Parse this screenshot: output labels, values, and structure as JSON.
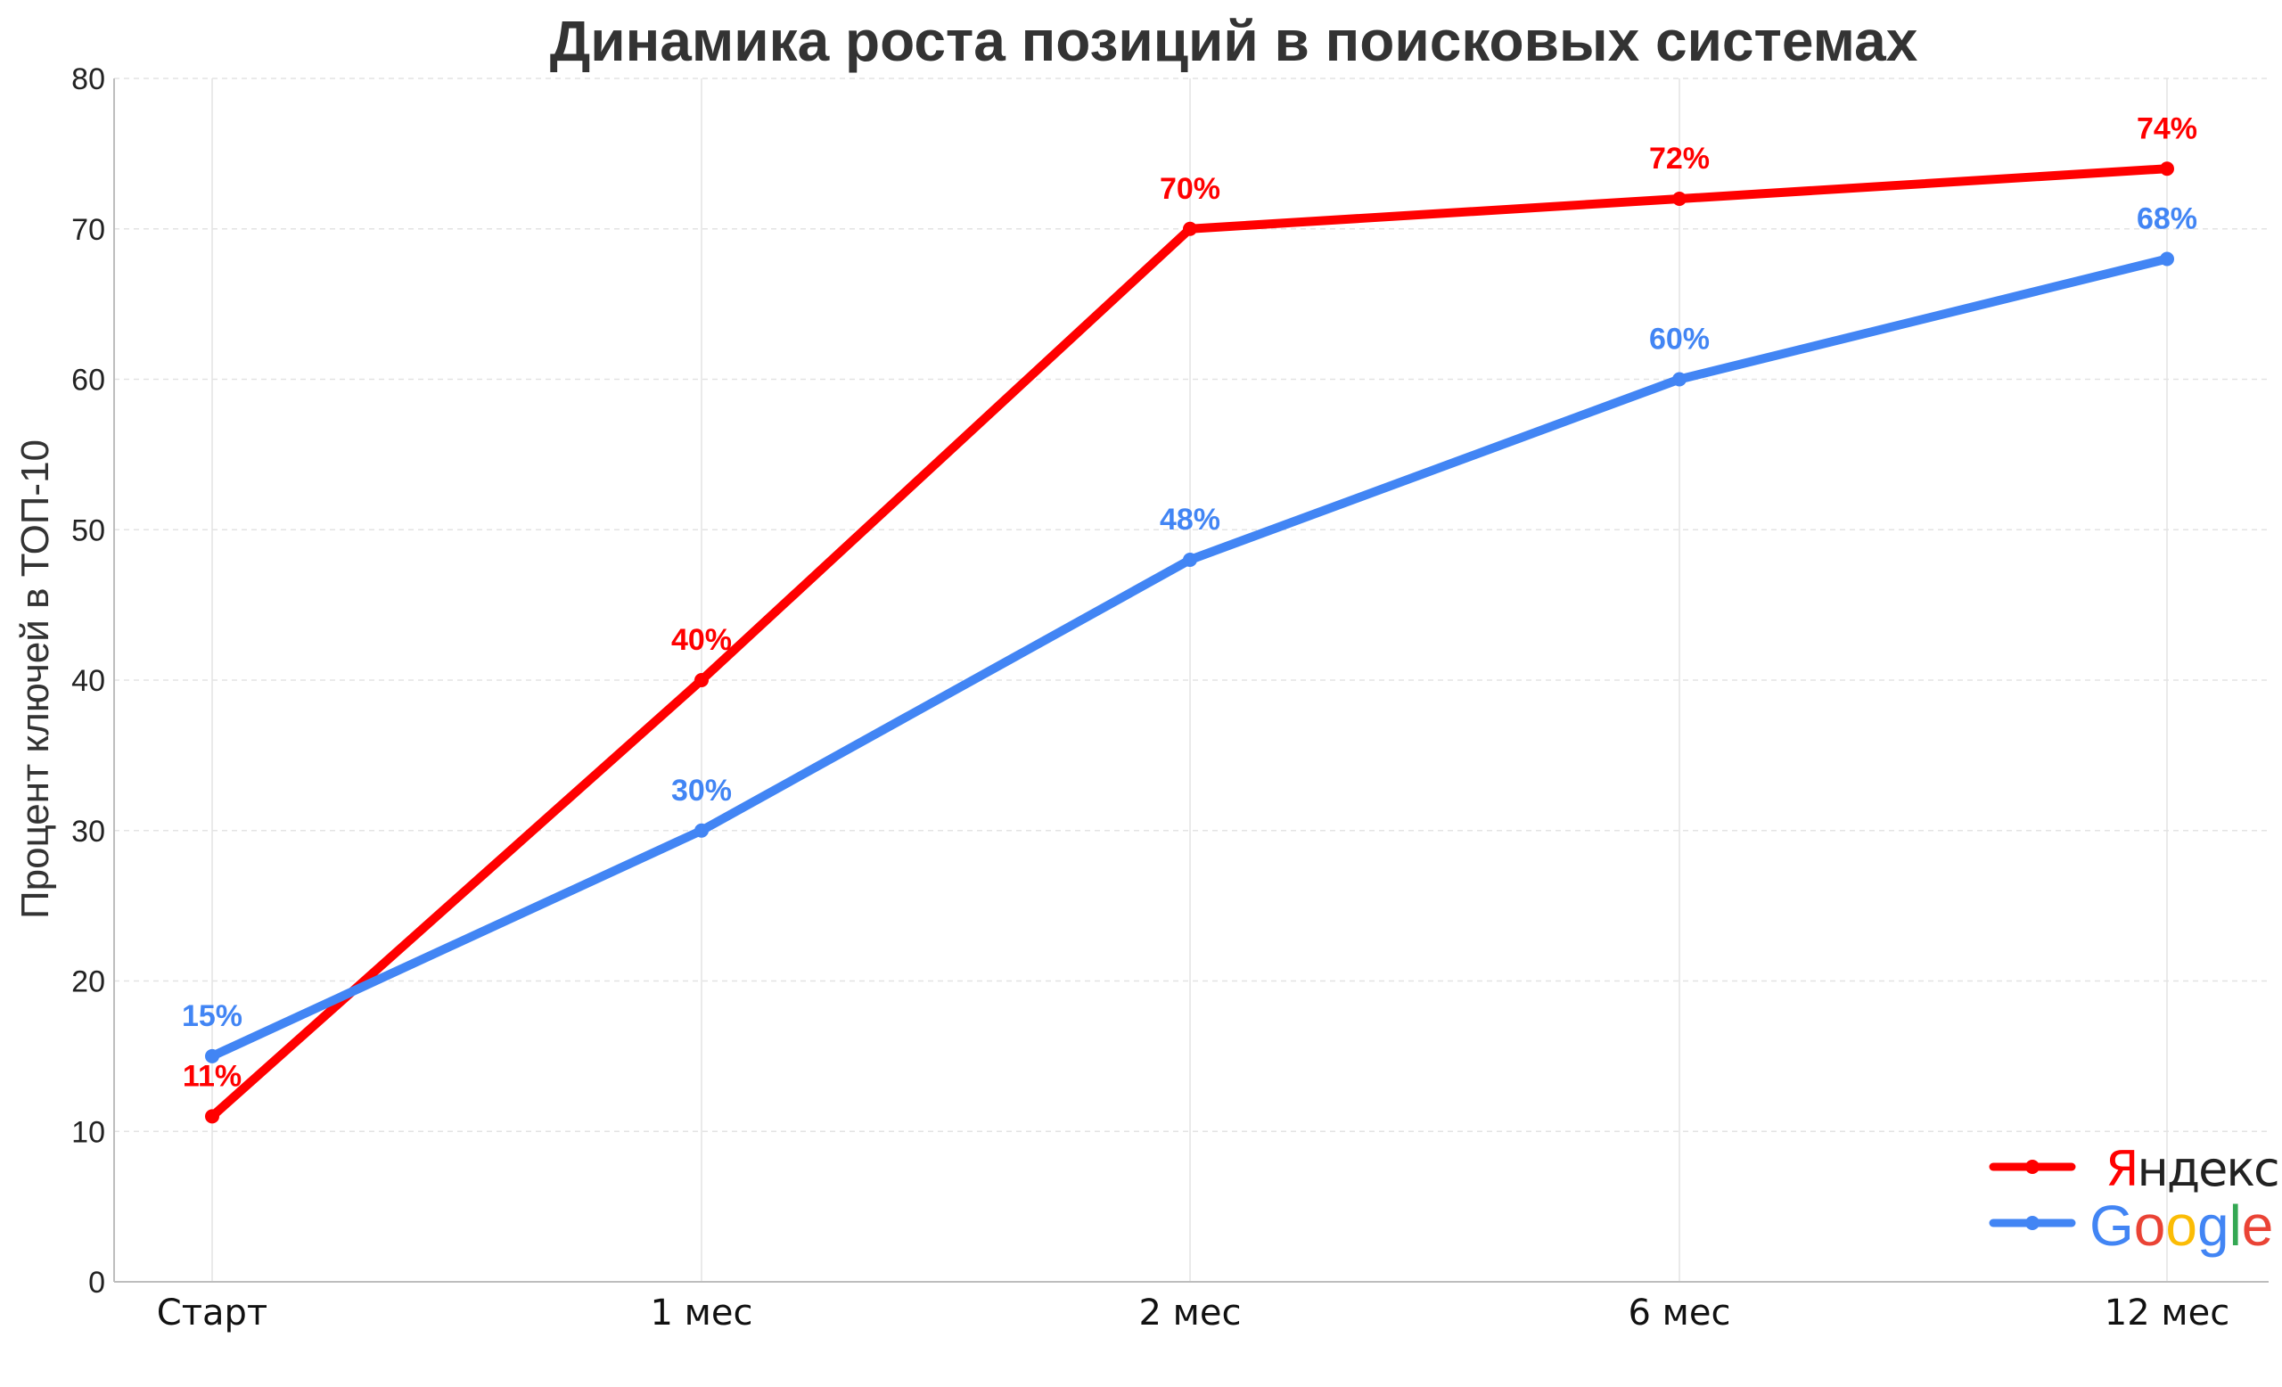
{
  "chart_data": {
    "type": "line",
    "title": "Динамика роста позиций в поисковых системах",
    "ylabel": "Процент ключей в ТОП-10",
    "xlabel": "",
    "categories": [
      "Старт",
      "1 мес",
      "2 мес",
      "6 мес",
      "12 мес"
    ],
    "ylim": [
      0,
      80
    ],
    "yticks": [
      0,
      10,
      20,
      30,
      40,
      50,
      60,
      70,
      80
    ],
    "grid": true,
    "legend_position": "bottom-right",
    "series": [
      {
        "name": "Яндекс",
        "legend_logo": "yandex-logo",
        "color": "#ff0000",
        "values": [
          11,
          40,
          70,
          72,
          74
        ],
        "labels": [
          "11%",
          "40%",
          "70%",
          "72%",
          "74%"
        ]
      },
      {
        "name": "Google",
        "legend_logo": "google-logo",
        "color": "#4285f4",
        "values": [
          15,
          30,
          48,
          60,
          68
        ],
        "labels": [
          "15%",
          "30%",
          "48%",
          "60%",
          "68%"
        ]
      }
    ],
    "logo_colors": {
      "yandex_first_letter": "#ff0000",
      "google": [
        "#4285f4",
        "#ea4335",
        "#fbbc05",
        "#4285f4",
        "#34a853",
        "#ea4335"
      ]
    }
  }
}
